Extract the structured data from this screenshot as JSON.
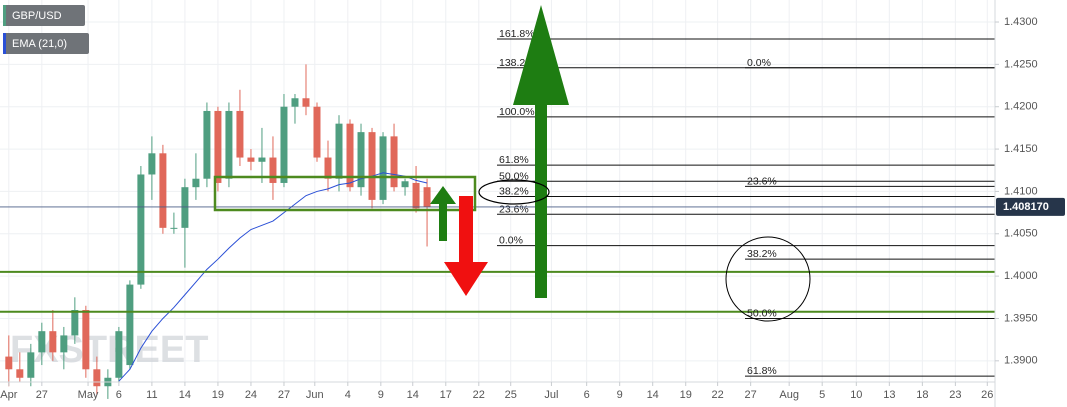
{
  "chart_data": {
    "type": "candlestick",
    "symbol": "GBP/USD",
    "watermark": "FXSTREET",
    "x": [
      0,
      1,
      2,
      3,
      4,
      5,
      6,
      7,
      8,
      9,
      10,
      11,
      12,
      13,
      14,
      15,
      16,
      17,
      18,
      19,
      20,
      21,
      22,
      23,
      24,
      25,
      26,
      27,
      28,
      29,
      30,
      31,
      32,
      33,
      34,
      35,
      36,
      37,
      38
    ],
    "open": [
      1.3905,
      1.389,
      1.388,
      1.391,
      1.3935,
      1.391,
      1.393,
      1.396,
      1.389,
      1.387,
      1.388,
      1.3895,
      1.399,
      1.412,
      1.4145,
      1.4057,
      1.4057,
      1.4105,
      1.4115,
      1.4195,
      1.4115,
      1.4195,
      1.414,
      1.4135,
      1.414,
      1.411,
      1.42,
      1.421,
      1.42,
      1.414,
      1.4115,
      1.418,
      1.4105,
      1.417,
      1.409,
      1.4165,
      1.4105,
      1.411,
      1.4105
    ],
    "high": [
      1.393,
      1.391,
      1.392,
      1.3945,
      1.396,
      1.394,
      1.3975,
      1.3965,
      1.3905,
      1.389,
      1.394,
      1.3995,
      1.413,
      1.4165,
      1.4155,
      1.4075,
      1.4115,
      1.4145,
      1.4205,
      1.42,
      1.4205,
      1.422,
      1.415,
      1.4175,
      1.4165,
      1.4215,
      1.4215,
      1.425,
      1.4205,
      1.416,
      1.419,
      1.4185,
      1.418,
      1.4175,
      1.417,
      1.418,
      1.4115,
      1.413,
      1.4115
    ],
    "low": [
      1.387,
      1.3875,
      1.387,
      1.3895,
      1.39,
      1.389,
      1.392,
      1.388,
      1.386,
      1.3855,
      1.3875,
      1.389,
      1.3985,
      1.409,
      1.405,
      1.405,
      1.401,
      1.409,
      1.4105,
      1.41,
      1.4105,
      1.413,
      1.4125,
      1.411,
      1.409,
      1.4105,
      1.418,
      1.419,
      1.4135,
      1.41,
      1.41,
      1.41,
      1.4095,
      1.408,
      1.4085,
      1.41,
      1.4095,
      1.4075,
      1.4035
    ],
    "close": [
      1.389,
      1.388,
      1.391,
      1.3935,
      1.391,
      1.393,
      1.396,
      1.389,
      1.387,
      1.388,
      1.3935,
      1.399,
      1.412,
      1.4145,
      1.4057,
      1.4057,
      1.4105,
      1.4115,
      1.4195,
      1.411,
      1.4195,
      1.414,
      1.4135,
      1.414,
      1.411,
      1.42,
      1.421,
      1.42,
      1.414,
      1.4115,
      1.418,
      1.4105,
      1.417,
      1.409,
      1.4165,
      1.4105,
      1.4112,
      1.408,
      1.4082
    ],
    "up_color": "#4f9e80",
    "down_color": "#e0685a",
    "ema": {
      "name": "EMA (21,0)",
      "color": "#2a4fd6",
      "x": [
        10,
        11,
        12,
        13,
        14,
        15,
        16,
        17,
        18,
        19,
        20,
        21,
        22,
        23,
        24,
        25,
        26,
        27,
        28,
        29,
        30,
        31,
        32,
        33,
        34,
        35,
        36,
        37,
        38
      ],
      "values": [
        1.3876,
        1.389,
        1.3915,
        1.3935,
        1.395,
        1.3963,
        1.3978,
        1.3993,
        1.4008,
        1.402,
        1.4033,
        1.4045,
        1.4055,
        1.406,
        1.4065,
        1.4075,
        1.4085,
        1.4095,
        1.41,
        1.4103,
        1.4108,
        1.411,
        1.4115,
        1.4118,
        1.4122,
        1.412,
        1.4118,
        1.4113,
        1.411
      ]
    },
    "last_price": {
      "value": 1.40817,
      "label": "1.408170"
    },
    "hlines": {
      "color": "#4d8a1f",
      "values": [
        1.4005,
        1.3958
      ]
    },
    "fib_left": [
      {
        "level": "161.8%",
        "price": 1.428
      },
      {
        "level": "138.2%",
        "price": 1.4246
      },
      {
        "level": "100.0%",
        "price": 1.4188
      },
      {
        "level": "61.8%",
        "price": 1.4131
      },
      {
        "level": "50.0%",
        "price": 1.4112
      },
      {
        "level": "38.2%",
        "price": 1.4094
      },
      {
        "level": "23.6%",
        "price": 1.4073
      },
      {
        "level": "0.0%",
        "price": 1.4036
      }
    ],
    "fib_right": [
      {
        "level": "0.0%",
        "price": 1.4246
      },
      {
        "level": "23.6%",
        "price": 1.4106
      },
      {
        "level": "38.2%",
        "price": 1.402
      },
      {
        "level": "50.0%",
        "price": 1.395
      },
      {
        "level": "61.8%",
        "price": 1.3882
      }
    ],
    "xlim": [
      -0.8,
      89.6
    ],
    "ylim": [
      1.3875,
      1.4326
    ],
    "xticks": [
      {
        "value": 0,
        "label": "Apr"
      },
      {
        "value": 3,
        "label": "27"
      },
      {
        "value": 7.2,
        "label": "May"
      },
      {
        "value": 10,
        "label": "6"
      },
      {
        "value": 13,
        "label": "11"
      },
      {
        "value": 16,
        "label": "14"
      },
      {
        "value": 19,
        "label": "19"
      },
      {
        "value": 22,
        "label": "24"
      },
      {
        "value": 25,
        "label": "27"
      },
      {
        "value": 27.8,
        "label": "Jun"
      },
      {
        "value": 30.8,
        "label": "4"
      },
      {
        "value": 33.8,
        "label": "9"
      },
      {
        "value": 36.7,
        "label": "14"
      },
      {
        "value": 39.7,
        "label": "17"
      },
      {
        "value": 42.7,
        "label": "22"
      },
      {
        "value": 45.6,
        "label": "25"
      },
      {
        "value": 49.3,
        "label": "Jul"
      },
      {
        "value": 52.5,
        "label": "6"
      },
      {
        "value": 55.5,
        "label": "9"
      },
      {
        "value": 58.5,
        "label": "14"
      },
      {
        "value": 61.5,
        "label": "19"
      },
      {
        "value": 64.4,
        "label": "22"
      },
      {
        "value": 67.4,
        "label": "27"
      },
      {
        "value": 70.9,
        "label": "Aug"
      },
      {
        "value": 73.9,
        "label": "5"
      },
      {
        "value": 77,
        "label": "10"
      },
      {
        "value": 80,
        "label": "13"
      },
      {
        "value": 83,
        "label": "18"
      },
      {
        "value": 86,
        "label": "23"
      },
      {
        "value": 88.9,
        "label": "26"
      }
    ],
    "yticks": [
      {
        "value": 1.39,
        "label": "1.3900"
      },
      {
        "value": 1.395,
        "label": "1.3950"
      },
      {
        "value": 1.4,
        "label": "1.4000"
      },
      {
        "value": 1.405,
        "label": "1.4050"
      },
      {
        "value": 1.41,
        "label": "1.4100"
      },
      {
        "value": 1.415,
        "label": "1.4150"
      },
      {
        "value": 1.42,
        "label": "1.4200"
      },
      {
        "value": 1.425,
        "label": "1.4250"
      },
      {
        "value": 1.43,
        "label": "1.4300"
      }
    ],
    "grid": true
  }
}
